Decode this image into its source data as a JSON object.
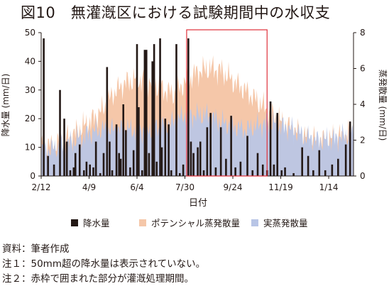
{
  "figure_title": "図10　無灌漑区における試験期間中の水収支",
  "notes": {
    "source": "資料：筆者作成",
    "note1": "注１：50mm超の降水量は表示されていない。",
    "note2": "注２：赤枠で囲まれた部分が灌漑処理期間。"
  },
  "chart_data": {
    "type": "bar+area",
    "xlabel": "日付",
    "ylabel_left": "降水量 (mm/日)",
    "ylabel_right": "蒸発散量 (mm/日)",
    "ylim_left": [
      0,
      50
    ],
    "ylim_right": [
      0,
      8
    ],
    "yticks_left": [
      "0",
      "10",
      "20",
      "30",
      "40",
      "50"
    ],
    "yticks_right": [
      "0",
      "2",
      "4",
      "6",
      "8"
    ],
    "x_start": "2/12",
    "x_days": 365,
    "xticks": [
      {
        "label": "2/12",
        "day": 0
      },
      {
        "label": "4/9",
        "day": 56
      },
      {
        "label": "6/4",
        "day": 112
      },
      {
        "label": "7/30",
        "day": 168
      },
      {
        "label": "9/24",
        "day": 224
      },
      {
        "label": "11/19",
        "day": 280
      },
      {
        "label": "1/14",
        "day": 336
      }
    ],
    "irrigation_period": {
      "start_day": 170,
      "end_day": 264
    },
    "colors": {
      "precip": "#231815",
      "pet": "#f5c7a9",
      "aet": "#b8c5e6",
      "irrigation_box": "#e0303a"
    },
    "legend": [
      {
        "label": "降水量",
        "key": "precip"
      },
      {
        "label": "ポテンシャル蒸発散量",
        "key": "pet"
      },
      {
        "label": "実蒸発散量",
        "key": "aet"
      }
    ],
    "series": {
      "potential_et": {
        "name": "ポテンシャル蒸発散量",
        "days": [
          0,
          20,
          40,
          56,
          70,
          84,
          98,
          112,
          126,
          140,
          154,
          168,
          182,
          196,
          210,
          224,
          238,
          252,
          266,
          280,
          294,
          308,
          322,
          336,
          350,
          365
        ],
        "values": [
          1.6,
          1.8,
          2.4,
          3.0,
          3.6,
          4.6,
          5.2,
          5.4,
          5.3,
          4.9,
          4.6,
          5.2,
          5.8,
          6.0,
          5.9,
          5.3,
          4.8,
          4.2,
          3.6,
          3.0,
          2.6,
          2.2,
          2.0,
          2.0,
          2.2,
          2.4
        ]
      },
      "actual_et": {
        "name": "実蒸発散量",
        "days": [
          0,
          20,
          40,
          56,
          70,
          84,
          98,
          112,
          126,
          140,
          154,
          168,
          182,
          196,
          210,
          224,
          238,
          252,
          266,
          280,
          294,
          308,
          322,
          336,
          350,
          365
        ],
        "values": [
          1.4,
          1.6,
          2.0,
          2.4,
          2.6,
          2.6,
          2.6,
          2.6,
          2.6,
          2.8,
          3.0,
          3.4,
          3.4,
          3.4,
          3.0,
          2.8,
          2.6,
          2.8,
          3.0,
          2.8,
          2.6,
          2.2,
          2.0,
          2.0,
          2.2,
          2.3
        ]
      },
      "precipitation": {
        "name": "降水量",
        "events": [
          {
            "day": 3,
            "mm": 48
          },
          {
            "day": 8,
            "mm": 7
          },
          {
            "day": 15,
            "mm": 4
          },
          {
            "day": 22,
            "mm": 30
          },
          {
            "day": 27,
            "mm": 20
          },
          {
            "day": 30,
            "mm": 12
          },
          {
            "day": 34,
            "mm": 2
          },
          {
            "day": 38,
            "mm": 3
          },
          {
            "day": 40,
            "mm": 8
          },
          {
            "day": 45,
            "mm": 11
          },
          {
            "day": 50,
            "mm": 2
          },
          {
            "day": 53,
            "mm": 5
          },
          {
            "day": 57,
            "mm": 4
          },
          {
            "day": 61,
            "mm": 3
          },
          {
            "day": 64,
            "mm": 12
          },
          {
            "day": 69,
            "mm": 1
          },
          {
            "day": 73,
            "mm": 8
          },
          {
            "day": 77,
            "mm": 38
          },
          {
            "day": 80,
            "mm": 12
          },
          {
            "day": 83,
            "mm": 2
          },
          {
            "day": 88,
            "mm": 18
          },
          {
            "day": 91,
            "mm": 8
          },
          {
            "day": 93,
            "mm": 6
          },
          {
            "day": 96,
            "mm": 25
          },
          {
            "day": 99,
            "mm": 16
          },
          {
            "day": 104,
            "mm": 3
          },
          {
            "day": 108,
            "mm": 9
          },
          {
            "day": 112,
            "mm": 46
          },
          {
            "day": 114,
            "mm": 24
          },
          {
            "day": 118,
            "mm": 2
          },
          {
            "day": 121,
            "mm": 44
          },
          {
            "day": 123,
            "mm": 44
          },
          {
            "day": 126,
            "mm": 8
          },
          {
            "day": 130,
            "mm": 40
          },
          {
            "day": 132,
            "mm": 46
          },
          {
            "day": 135,
            "mm": 5
          },
          {
            "day": 139,
            "mm": 48
          },
          {
            "day": 141,
            "mm": 10
          },
          {
            "day": 145,
            "mm": 20
          },
          {
            "day": 149,
            "mm": 18
          },
          {
            "day": 152,
            "mm": 2
          },
          {
            "day": 158,
            "mm": 46
          },
          {
            "day": 162,
            "mm": 1
          },
          {
            "day": 166,
            "mm": 4
          },
          {
            "day": 172,
            "mm": 48
          },
          {
            "day": 175,
            "mm": 12
          },
          {
            "day": 178,
            "mm": 8
          },
          {
            "day": 183,
            "mm": 10
          },
          {
            "day": 186,
            "mm": 12
          },
          {
            "day": 190,
            "mm": 2
          },
          {
            "day": 194,
            "mm": 17
          },
          {
            "day": 198,
            "mm": 22
          },
          {
            "day": 204,
            "mm": 3
          },
          {
            "day": 210,
            "mm": 17
          },
          {
            "day": 216,
            "mm": 6
          },
          {
            "day": 222,
            "mm": 21
          },
          {
            "day": 227,
            "mm": 3
          },
          {
            "day": 233,
            "mm": 5
          },
          {
            "day": 241,
            "mm": 14
          },
          {
            "day": 247,
            "mm": 2
          },
          {
            "day": 253,
            "mm": 8
          },
          {
            "day": 259,
            "mm": 4
          },
          {
            "day": 264,
            "mm": 2
          },
          {
            "day": 268,
            "mm": 26
          },
          {
            "day": 272,
            "mm": 4
          },
          {
            "day": 276,
            "mm": 22
          },
          {
            "day": 281,
            "mm": 2
          },
          {
            "day": 285,
            "mm": 3
          },
          {
            "day": 295,
            "mm": 1
          },
          {
            "day": 305,
            "mm": 10
          },
          {
            "day": 312,
            "mm": 7
          },
          {
            "day": 318,
            "mm": 2
          },
          {
            "day": 325,
            "mm": 9
          },
          {
            "day": 332,
            "mm": 2
          },
          {
            "day": 340,
            "mm": 4
          },
          {
            "day": 347,
            "mm": 6
          },
          {
            "day": 356,
            "mm": 11
          },
          {
            "day": 361,
            "mm": 19
          }
        ]
      }
    }
  }
}
